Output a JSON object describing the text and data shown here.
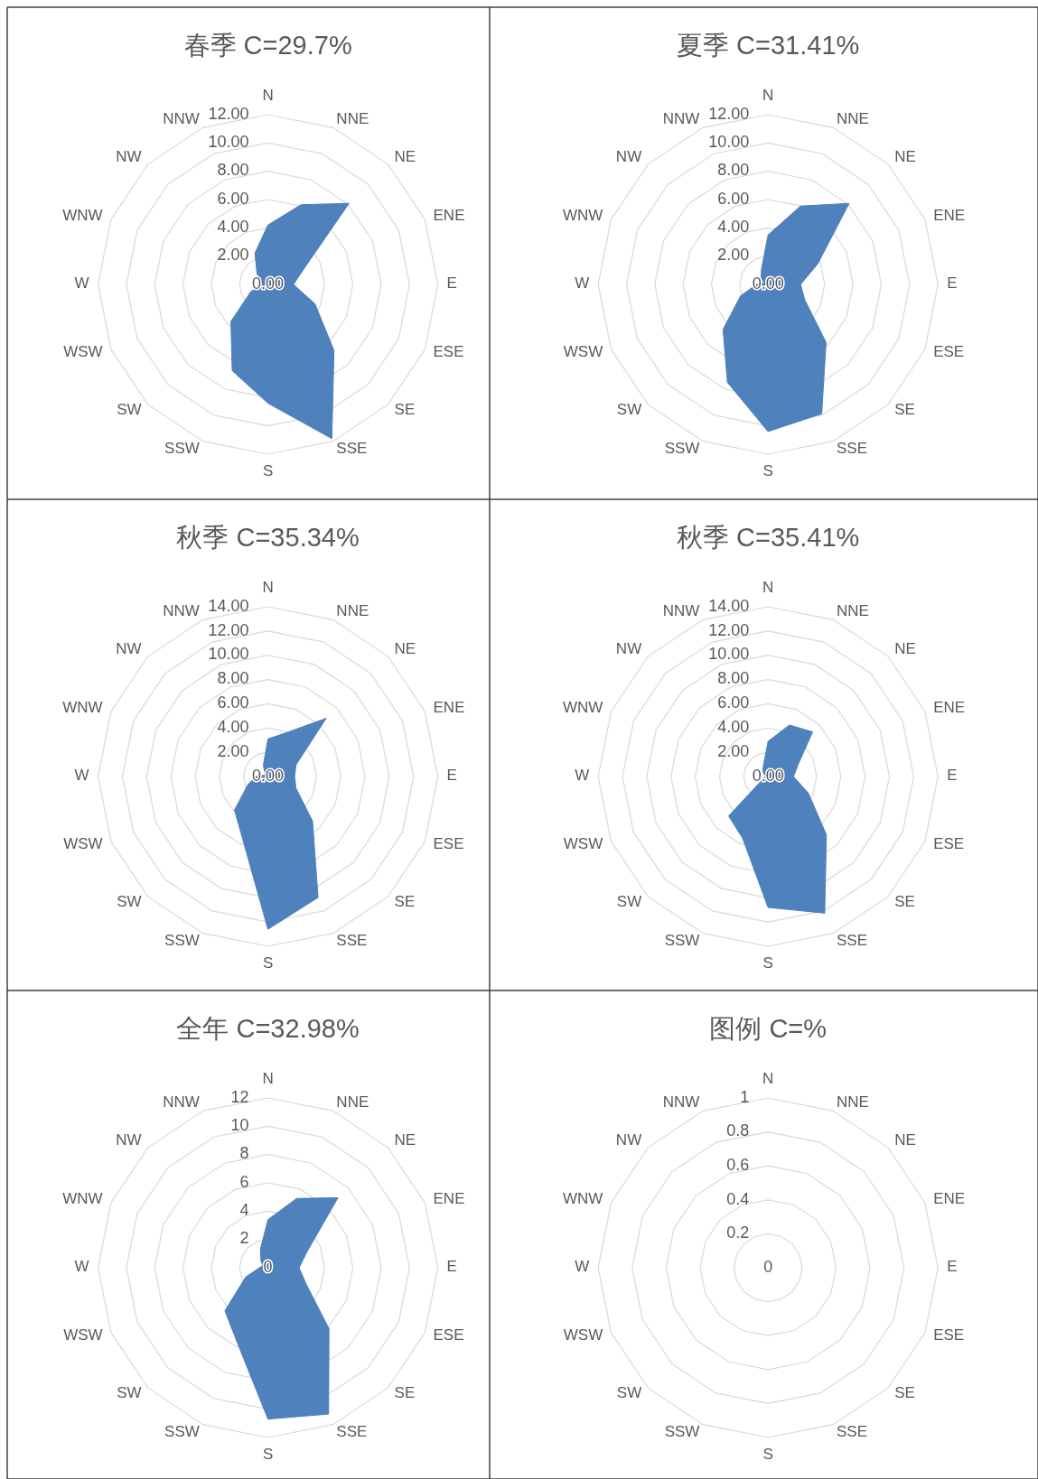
{
  "chart_data": [
    {
      "type": "radar",
      "title": "春季 C=29.7%",
      "categories": [
        "N",
        "NNE",
        "NE",
        "ENE",
        "E",
        "ESE",
        "SE",
        "SSE",
        "S",
        "SSW",
        "SW",
        "WSW",
        "W",
        "WNW",
        "NW",
        "NNW"
      ],
      "ylim": [
        0,
        12
      ],
      "yticks": [
        {
          "value": 0,
          "label": "0.00"
        },
        {
          "value": 2,
          "label": "2.00"
        },
        {
          "value": 4,
          "label": "4.00"
        },
        {
          "value": 6,
          "label": "6.00"
        },
        {
          "value": 8,
          "label": "8.00"
        },
        {
          "value": 10,
          "label": "10.00"
        },
        {
          "value": 12,
          "label": "12.00"
        }
      ],
      "grid": true,
      "series": [
        {
          "color": "#4f81bd",
          "values": [
            4.2,
            6.1,
            8.1,
            2.7,
            1.8,
            3.6,
            6.6,
            11.8,
            8.4,
            6.6,
            3.7,
            1.3,
            0.4,
            0.5,
            1.1,
            2.4
          ]
        }
      ]
    },
    {
      "type": "radar",
      "title": "夏季 C=31.41%",
      "categories": [
        "N",
        "NNE",
        "NE",
        "ENE",
        "E",
        "ESE",
        "SE",
        "SSE",
        "S",
        "SSW",
        "SW",
        "WSW",
        "W",
        "WNW",
        "NW",
        "NNW"
      ],
      "ylim": [
        0,
        12
      ],
      "yticks": [
        {
          "value": 0,
          "label": "0.00"
        },
        {
          "value": 2,
          "label": "2.00"
        },
        {
          "value": 4,
          "label": "4.00"
        },
        {
          "value": 6,
          "label": "6.00"
        },
        {
          "value": 8,
          "label": "8.00"
        },
        {
          "value": 10,
          "label": "10.00"
        },
        {
          "value": 12,
          "label": "12.00"
        }
      ],
      "grid": true,
      "series": [
        {
          "color": "#4f81bd",
          "values": [
            3.5,
            6.0,
            8.1,
            3.8,
            2.3,
            2.8,
            5.8,
            9.9,
            10.4,
            7.5,
            4.5,
            2.1,
            0.8,
            0.3,
            0.7,
            1.2
          ]
        }
      ]
    },
    {
      "type": "radar",
      "title": "秋季 C=35.34%",
      "categories": [
        "N",
        "NNE",
        "NE",
        "ENE",
        "E",
        "ESE",
        "SE",
        "SSE",
        "S",
        "SSW",
        "SW",
        "WSW",
        "W",
        "WNW",
        "NW",
        "NNW"
      ],
      "ylim": [
        0,
        14
      ],
      "yticks": [
        {
          "value": 0,
          "label": "0.00"
        },
        {
          "value": 2,
          "label": "2.00"
        },
        {
          "value": 4,
          "label": "4.00"
        },
        {
          "value": 6,
          "label": "6.00"
        },
        {
          "value": 8,
          "label": "8.00"
        },
        {
          "value": 10,
          "label": "10.00"
        },
        {
          "value": 12,
          "label": "12.00"
        },
        {
          "value": 14,
          "label": "14.00"
        }
      ],
      "grid": true,
      "series": [
        {
          "color": "#4f81bd",
          "values": [
            3.1,
            3.9,
            6.8,
            2.5,
            2.2,
            2.5,
            5.2,
            10.8,
            12.6,
            5.5,
            3.9,
            1.8,
            1.0,
            0.3,
            0.3,
            1.0
          ]
        }
      ]
    },
    {
      "type": "radar",
      "title": "秋季 C=35.41%",
      "categories": [
        "N",
        "NNE",
        "NE",
        "ENE",
        "E",
        "ESE",
        "SE",
        "SSE",
        "S",
        "SSW",
        "SW",
        "WSW",
        "W",
        "WNW",
        "NW",
        "NNW"
      ],
      "ylim": [
        0,
        14
      ],
      "yticks": [
        {
          "value": 0,
          "label": "0.00"
        },
        {
          "value": 2,
          "label": "2.00"
        },
        {
          "value": 4,
          "label": "4.00"
        },
        {
          "value": 6,
          "label": "6.00"
        },
        {
          "value": 8,
          "label": "8.00"
        },
        {
          "value": 10,
          "label": "10.00"
        },
        {
          "value": 12,
          "label": "12.00"
        },
        {
          "value": 14,
          "label": "14.00"
        }
      ],
      "grid": true,
      "series": [
        {
          "color": "#4f81bd",
          "values": [
            2.9,
            4.6,
            5.2,
            2.7,
            2.1,
            3.6,
            6.8,
            12.2,
            10.8,
            5.5,
            4.6,
            0.4,
            0.2,
            0.3,
            0.6,
            1.0
          ]
        }
      ]
    },
    {
      "type": "radar",
      "title": "全年 C=32.98%",
      "categories": [
        "N",
        "NNE",
        "NE",
        "ENE",
        "E",
        "ESE",
        "SE",
        "SSE",
        "S",
        "SSW",
        "SW",
        "WSW",
        "W",
        "WNW",
        "NW",
        "NNW"
      ],
      "ylim": [
        0,
        12
      ],
      "yticks": [
        0,
        2,
        4,
        6,
        8,
        10,
        12
      ],
      "grid": true,
      "series": [
        {
          "color": "#4f81bd",
          "values": [
            3.4,
            5.3,
            7.0,
            3.0,
            2.2,
            2.9,
            6.1,
            11.2,
            10.7,
            5.7,
            4.3,
            1.7,
            0.6,
            0.4,
            0.7,
            1.4
          ]
        }
      ]
    },
    {
      "type": "radar",
      "title": "图例 C=%",
      "categories": [
        "N",
        "NNE",
        "NE",
        "ENE",
        "E",
        "ESE",
        "SE",
        "SSE",
        "S",
        "SSW",
        "SW",
        "WSW",
        "W",
        "WNW",
        "NW",
        "NNW"
      ],
      "ylim": [
        0,
        1
      ],
      "yticks": [
        0,
        0.2,
        0.4,
        0.6,
        0.8,
        1
      ],
      "grid": true
    }
  ]
}
